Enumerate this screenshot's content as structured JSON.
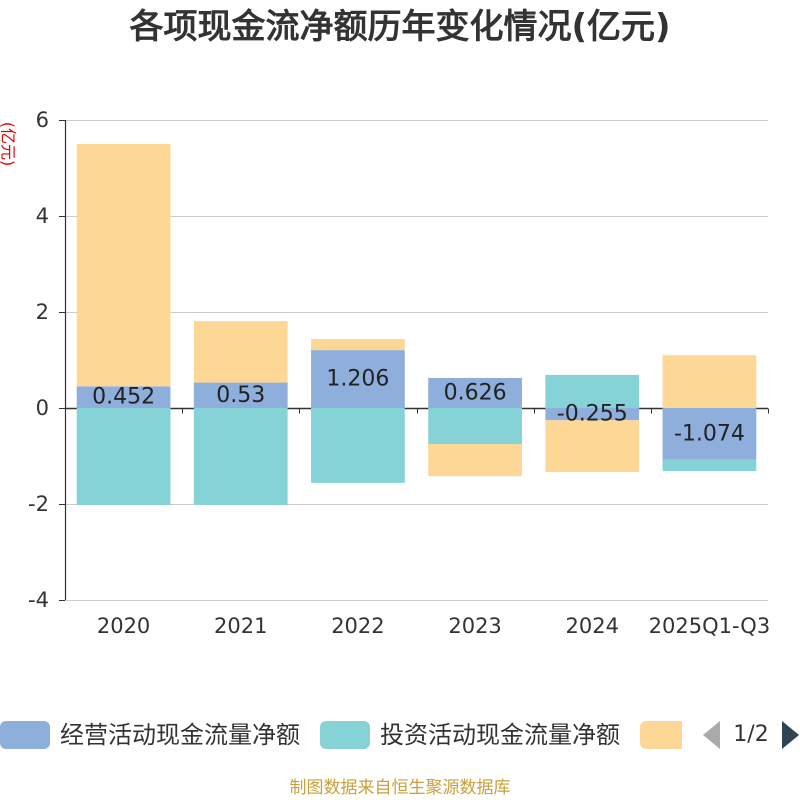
{
  "chart_data": {
    "type": "bar",
    "stacked": true,
    "title": "各项现金流净额历年变化情况(亿元)",
    "xlabel": "",
    "ylabel": "(亿元)",
    "ylim": [
      -4,
      6
    ],
    "yticks": [
      6,
      4,
      2,
      0,
      -2,
      -4
    ],
    "grid": true,
    "legend_position": "bottom",
    "categories": [
      "2020",
      "2021",
      "2022",
      "2023",
      "2024",
      "2025Q1-Q3"
    ],
    "series": [
      {
        "name": "经营活动现金流量净额",
        "color": "#8eaedb",
        "data_labels": true,
        "values": [
          0.452,
          0.53,
          1.206,
          0.626,
          -0.255,
          -1.074
        ]
      },
      {
        "name": "投资活动现金流量净额",
        "color": "#86d3d7",
        "data_labels": false,
        "values": [
          -2.02,
          -2.02,
          -1.56,
          -0.75,
          0.69,
          -0.24
        ]
      },
      {
        "name": "",
        "color": "#fdd795",
        "data_labels": false,
        "values": [
          5.05,
          1.28,
          0.23,
          -0.67,
          -1.08,
          1.1
        ]
      }
    ]
  },
  "legend": {
    "page_indicator": "1/2",
    "prev_icon": "triangle-left-icon",
    "next_icon": "triangle-right-icon"
  },
  "footer": "制图数据来自恒生聚源数据库"
}
